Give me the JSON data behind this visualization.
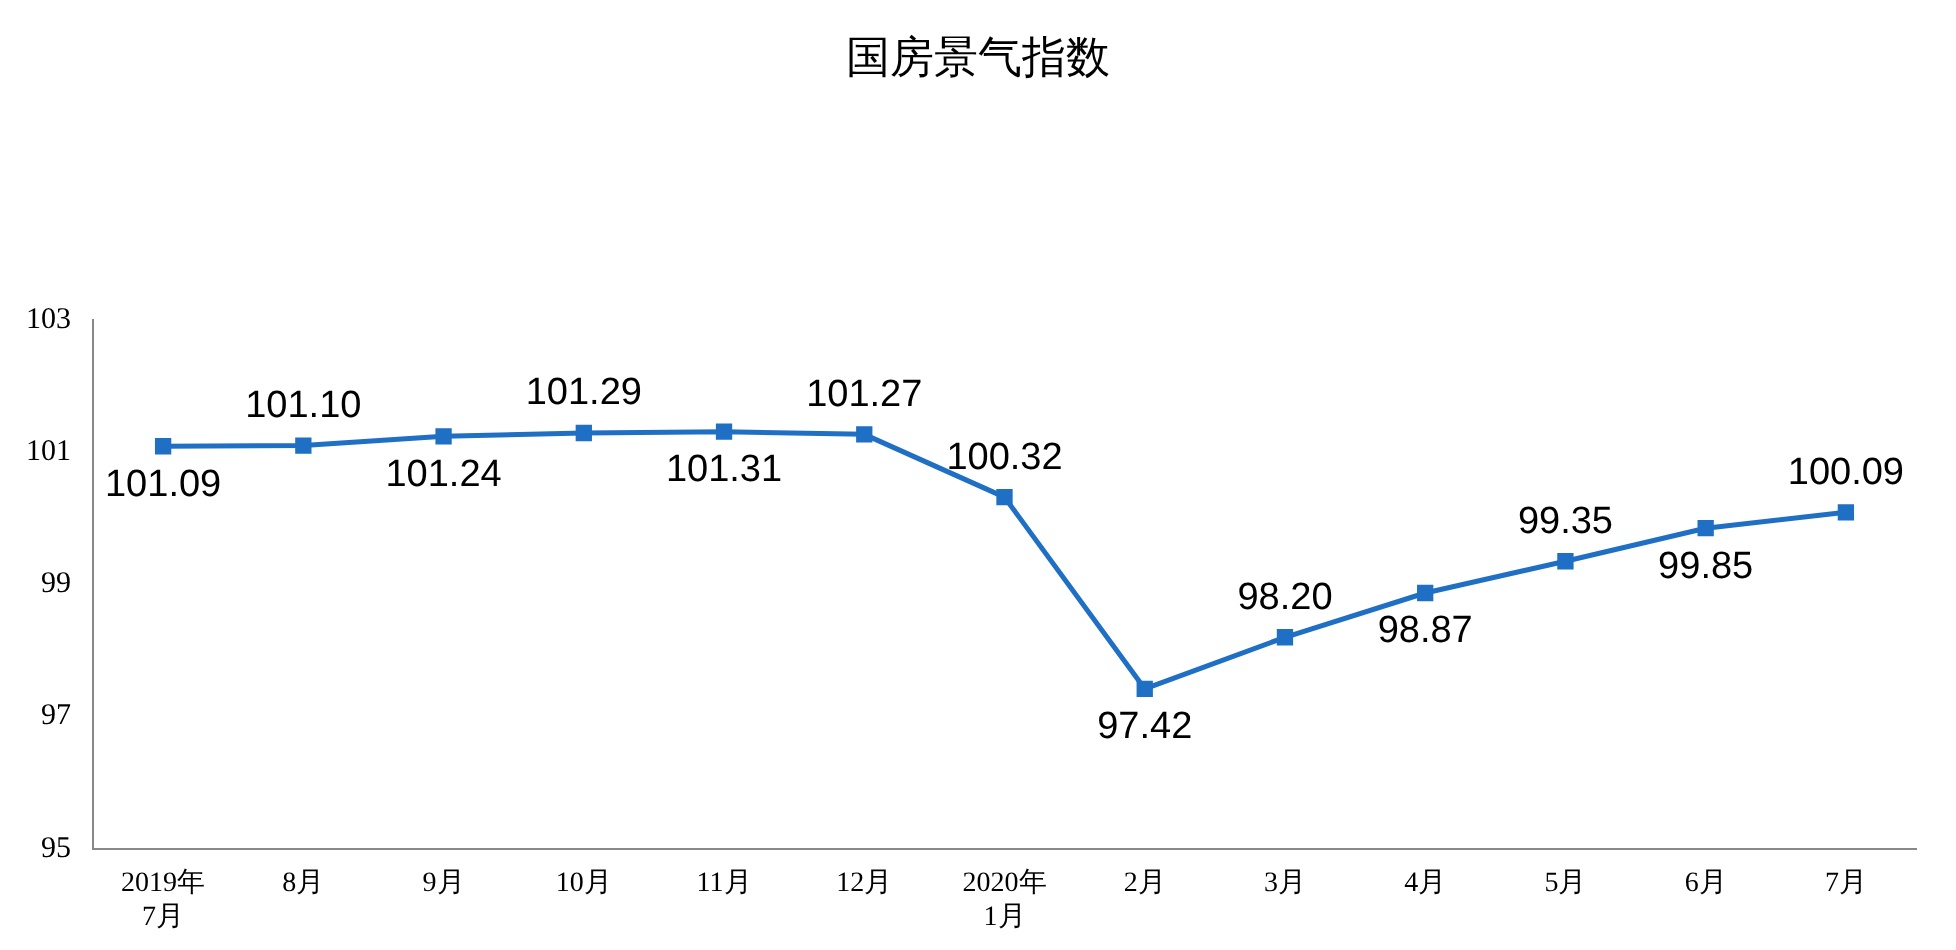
{
  "chart_data": {
    "type": "line",
    "title": "国房景气指数",
    "categories": [
      "2019年\n7月",
      "8月",
      "9月",
      "10月",
      "11月",
      "12月",
      "2020年\n1月",
      "2月",
      "3月",
      "4月",
      "5月",
      "6月",
      "7月"
    ],
    "series": [
      {
        "color": "#1f6fc5",
        "values": [
          101.09,
          101.1,
          101.24,
          101.29,
          101.31,
          101.27,
          100.32,
          97.42,
          98.2,
          98.87,
          99.35,
          99.85,
          100.09
        ],
        "value_labels": [
          "101.09",
          "101.10",
          "101.24",
          "101.29",
          "101.31",
          "101.27",
          "100.32",
          "97.42",
          "98.20",
          "98.87",
          "99.35",
          "99.85",
          "100.09"
        ]
      }
    ],
    "ylim": [
      95,
      103
    ],
    "yticks": [
      95,
      97,
      99,
      101,
      103
    ],
    "grid": false,
    "legend": false,
    "marker": "square",
    "line_style": "solid"
  }
}
